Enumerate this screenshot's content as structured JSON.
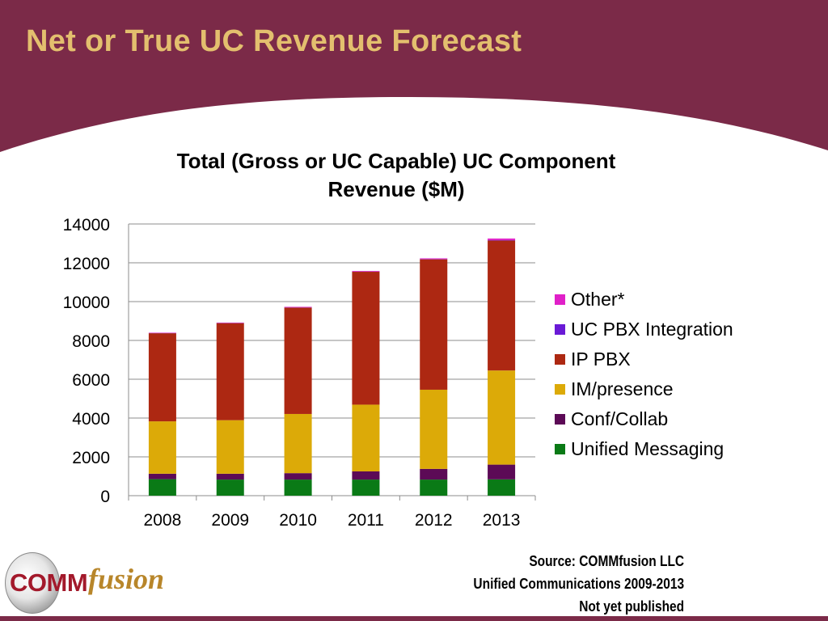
{
  "slide": {
    "title": "Net or True UC Revenue Forecast"
  },
  "colors": {
    "slide_background": "#7b2a48",
    "title_text": "#e3bf6e",
    "content_area": "#ffffff"
  },
  "chart_data": {
    "type": "bar",
    "stacked": true,
    "title_lines": [
      "Total (Gross or UC Capable) UC Component",
      "Revenue ($M)"
    ],
    "categories": [
      "2008",
      "2009",
      "2010",
      "2011",
      "2012",
      "2013"
    ],
    "ylim": [
      0,
      14000
    ],
    "yticks": [
      "0",
      "2000",
      "4000",
      "6000",
      "8000",
      "10000",
      "12000",
      "14000"
    ],
    "grid": true,
    "legend_position": "right",
    "series": [
      {
        "name": "Unified Messaging",
        "color": "#0a7a16",
        "values": [
          850,
          830,
          830,
          830,
          830,
          840
        ]
      },
      {
        "name": "Conf/Collab",
        "color": "#5c0a56",
        "values": [
          280,
          300,
          330,
          420,
          550,
          760
        ]
      },
      {
        "name": "IM/presence",
        "color": "#dcaa08",
        "values": [
          2700,
          2760,
          3050,
          3440,
          4080,
          4850
        ]
      },
      {
        "name": "IP PBX",
        "color": "#ad2812",
        "values": [
          4540,
          5000,
          5480,
          6850,
          6720,
          6700
        ]
      },
      {
        "name": "UC PBX Integration",
        "color": "#6a1ad6",
        "values": [
          10,
          10,
          10,
          10,
          10,
          20
        ]
      },
      {
        "name": "Other*",
        "color": "#e020c8",
        "values": [
          20,
          20,
          30,
          30,
          40,
          80
        ]
      }
    ]
  },
  "legend_items": [
    "Other*",
    "UC PBX Integration",
    "IP PBX",
    "IM/presence",
    "Conf/Collab",
    "Unified Messaging"
  ],
  "source": {
    "line1": "Source: COMMfusion LLC",
    "line2": "Unified Communications 2009-2013",
    "line3": "Not yet published"
  },
  "logo": {
    "comm": "COMM",
    "fusion": "fusion"
  }
}
